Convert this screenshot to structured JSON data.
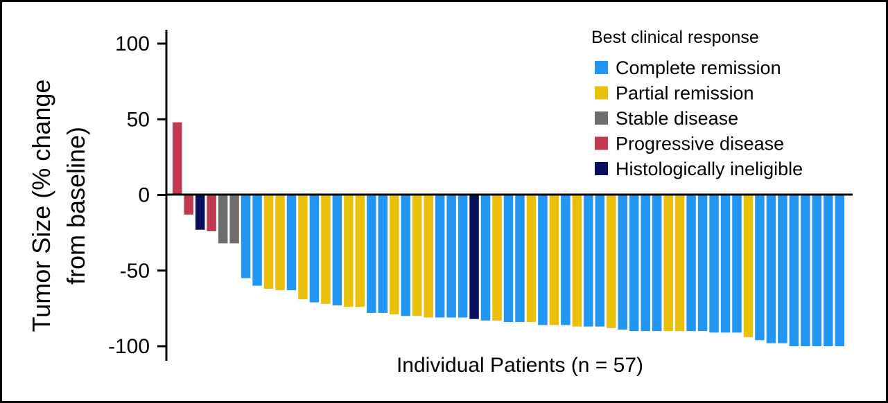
{
  "chart_data": {
    "type": "bar",
    "title": "",
    "ylabel": "Tumor Size (% change from baseline)",
    "ylabel_lines": [
      "Tumor Size (% change",
      "from baseline)"
    ],
    "xlabel": "Individual Patients (n = 57)",
    "ylim": [
      -100,
      100
    ],
    "yticks": [
      100,
      50,
      0,
      -50,
      -100
    ],
    "grid": false,
    "legend": {
      "title": "Best clinical response",
      "position": "top-right",
      "entries": [
        {
          "key": "CR",
          "label": "Complete remission",
          "color": "#2196F3"
        },
        {
          "key": "PR",
          "label": "Partial remission",
          "color": "#EBC00B"
        },
        {
          "key": "SD",
          "label": "Stable disease",
          "color": "#6E6E6E"
        },
        {
          "key": "PD",
          "label": "Progressive disease",
          "color": "#C0394F"
        },
        {
          "key": "HI",
          "label": "Histologically ineligible",
          "color": "#0A0F5C"
        }
      ]
    },
    "values": [
      48,
      -13,
      -23,
      -24,
      -32,
      -32,
      -55,
      -60,
      -62,
      -63,
      -63,
      -69,
      -71,
      -72,
      -73,
      -74,
      -74,
      -78,
      -78,
      -79,
      -80,
      -80,
      -81,
      -81,
      -81,
      -81,
      -82,
      -83,
      -83,
      -84,
      -84,
      -84,
      -86,
      -86,
      -86,
      -87,
      -87,
      -87,
      -88,
      -89,
      -90,
      -90,
      -90,
      -90,
      -90,
      -90,
      -90,
      -91,
      -91,
      -91,
      -94,
      -96,
      -98,
      -98,
      -100,
      -100,
      -100,
      -100,
      -100
    ],
    "responses": [
      "PD",
      "PD",
      "HI",
      "PD",
      "SD",
      "SD",
      "CR",
      "CR",
      "PR",
      "PR",
      "CR",
      "PR",
      "CR",
      "PR",
      "CR",
      "PR",
      "PR",
      "CR",
      "CR",
      "PR",
      "CR",
      "PR",
      "PR",
      "CR",
      "CR",
      "CR",
      "HI",
      "CR",
      "PR",
      "CR",
      "CR",
      "PR",
      "CR",
      "PR",
      "CR",
      "PR",
      "CR",
      "CR",
      "PR",
      "CR",
      "CR",
      "CR",
      "CR",
      "PR",
      "PR",
      "CR",
      "CR",
      "CR",
      "CR",
      "CR",
      "PR",
      "CR",
      "CR",
      "CR",
      "CR",
      "CR",
      "CR",
      "CR",
      "CR"
    ]
  }
}
